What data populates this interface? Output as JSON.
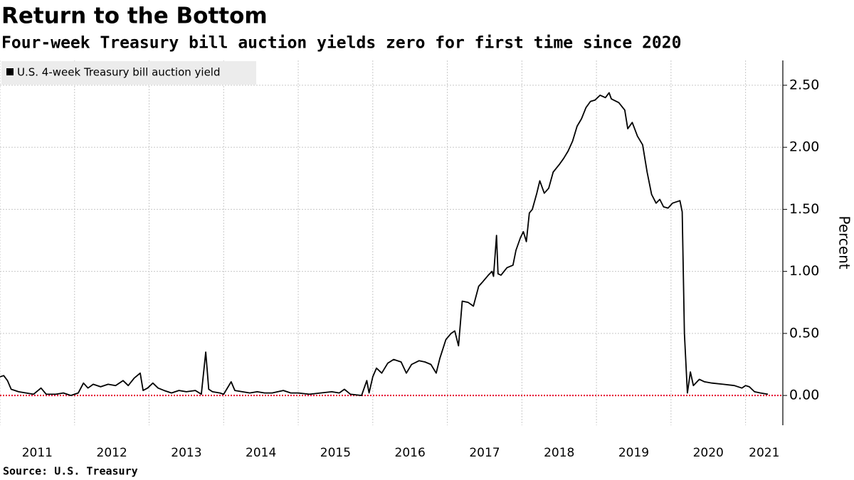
{
  "chart_data": {
    "type": "line",
    "title": "Return to the Bottom",
    "subtitle": "Four-week Treasury bill auction yields zero for first time since 2020",
    "source": "Source: U.S. Treasury",
    "y_axis_label": "Percent",
    "x": [
      2011.0,
      2011.05,
      2011.1,
      2011.15,
      2011.25,
      2011.35,
      2011.45,
      2011.55,
      2011.62,
      2011.75,
      2011.85,
      2011.95,
      2012.05,
      2012.12,
      2012.18,
      2012.25,
      2012.35,
      2012.45,
      2012.55,
      2012.65,
      2012.72,
      2012.8,
      2012.88,
      2012.92,
      2012.98,
      2013.05,
      2013.12,
      2013.2,
      2013.3,
      2013.4,
      2013.5,
      2013.62,
      2013.7,
      2013.76,
      2013.8,
      2013.85,
      2013.95,
      2014.0,
      2014.1,
      2014.15,
      2014.25,
      2014.35,
      2014.45,
      2014.55,
      2014.65,
      2014.8,
      2014.9,
      2015.0,
      2015.15,
      2015.3,
      2015.45,
      2015.55,
      2015.62,
      2015.7,
      2015.85,
      2015.92,
      2015.95,
      2016.0,
      2016.05,
      2016.12,
      2016.2,
      2016.28,
      2016.38,
      2016.45,
      2016.52,
      2016.62,
      2016.7,
      2016.78,
      2016.85,
      2016.9,
      2016.98,
      2017.05,
      2017.1,
      2017.15,
      2017.2,
      2017.28,
      2017.35,
      2017.42,
      2017.48,
      2017.55,
      2017.6,
      2017.62,
      2017.66,
      2017.68,
      2017.72,
      2017.8,
      2017.88,
      2017.92,
      2017.98,
      2018.02,
      2018.06,
      2018.1,
      2018.14,
      2018.2,
      2018.24,
      2018.3,
      2018.36,
      2018.42,
      2018.5,
      2018.56,
      2018.62,
      2018.68,
      2018.74,
      2018.8,
      2018.86,
      2018.92,
      2018.98,
      2019.05,
      2019.12,
      2019.17,
      2019.2,
      2019.3,
      2019.38,
      2019.42,
      2019.48,
      2019.55,
      2019.62,
      2019.68,
      2019.74,
      2019.8,
      2019.85,
      2019.9,
      2019.96,
      2020.02,
      2020.12,
      2020.15,
      2020.18,
      2020.22,
      2020.26,
      2020.3,
      2020.38,
      2020.45,
      2020.55,
      2020.7,
      2020.85,
      2020.95,
      2021.0,
      2021.05,
      2021.12,
      2021.2,
      2021.3
    ],
    "series": [
      {
        "name": "U.S. 4-week Treasury bill auction yield",
        "color": "#000000",
        "values": [
          0.15,
          0.16,
          0.12,
          0.05,
          0.03,
          0.02,
          0.01,
          0.06,
          0.01,
          0.01,
          0.02,
          0.0,
          0.02,
          0.1,
          0.06,
          0.09,
          0.07,
          0.09,
          0.08,
          0.12,
          0.08,
          0.14,
          0.18,
          0.04,
          0.06,
          0.1,
          0.06,
          0.04,
          0.02,
          0.04,
          0.03,
          0.04,
          0.01,
          0.35,
          0.05,
          0.03,
          0.02,
          0.01,
          0.11,
          0.04,
          0.03,
          0.02,
          0.03,
          0.02,
          0.02,
          0.04,
          0.02,
          0.02,
          0.01,
          0.02,
          0.03,
          0.02,
          0.05,
          0.01,
          0.0,
          0.12,
          0.02,
          0.15,
          0.22,
          0.18,
          0.26,
          0.29,
          0.27,
          0.18,
          0.25,
          0.28,
          0.27,
          0.25,
          0.18,
          0.3,
          0.45,
          0.5,
          0.52,
          0.4,
          0.76,
          0.75,
          0.72,
          0.88,
          0.92,
          0.97,
          1.0,
          0.96,
          1.29,
          0.98,
          0.97,
          1.03,
          1.05,
          1.17,
          1.27,
          1.32,
          1.24,
          1.47,
          1.5,
          1.63,
          1.73,
          1.63,
          1.67,
          1.8,
          1.86,
          1.91,
          1.97,
          2.05,
          2.17,
          2.23,
          2.32,
          2.37,
          2.38,
          2.42,
          2.4,
          2.44,
          2.39,
          2.36,
          2.3,
          2.15,
          2.2,
          2.09,
          2.02,
          1.8,
          1.62,
          1.55,
          1.58,
          1.52,
          1.51,
          1.55,
          1.57,
          1.48,
          0.5,
          0.02,
          0.19,
          0.08,
          0.13,
          0.11,
          0.1,
          0.09,
          0.08,
          0.06,
          0.08,
          0.07,
          0.03,
          0.02,
          0.01
        ]
      }
    ],
    "xlim": [
      2011.0,
      2021.5
    ],
    "xticks": [
      2011,
      2012,
      2013,
      2014,
      2015,
      2016,
      2017,
      2018,
      2019,
      2020,
      2021
    ],
    "ylim": [
      -0.24,
      2.7
    ],
    "yticks": [
      {
        "value": 0,
        "label": "0.00"
      },
      {
        "value": 0.5,
        "label": "0.50"
      },
      {
        "value": 1,
        "label": "1.00"
      },
      {
        "value": 1.5,
        "label": "1.50"
      },
      {
        "value": 2,
        "label": "2.00"
      },
      {
        "value": 2.5,
        "label": "2.50"
      }
    ],
    "grid": true,
    "legend": "upper left",
    "zero_line_color": "#e4002b"
  }
}
